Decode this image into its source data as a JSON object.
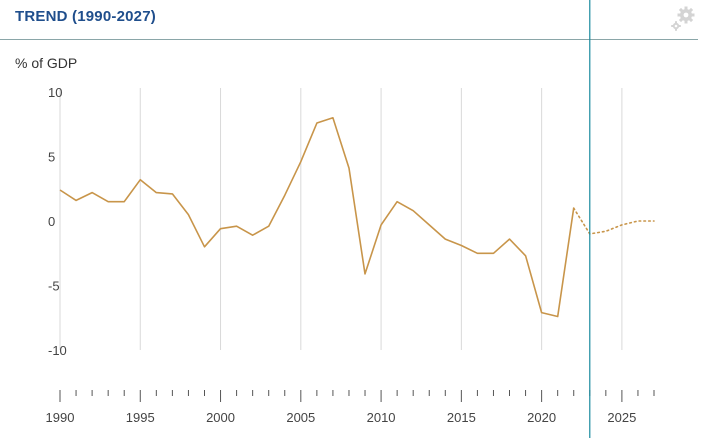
{
  "header": {
    "title": "TREND (1990-2027)",
    "settings_icon": "gear-icon"
  },
  "colors": {
    "accent": "#1f4e8c",
    "series": "#c8954a",
    "cursor": "#1a8a9e",
    "grid": "#d9d9d9"
  },
  "chart_data": {
    "type": "line",
    "ylabel": "% of GDP",
    "xlim": [
      1990,
      2027
    ],
    "ylim": [
      -13,
      10
    ],
    "yticks": [
      10,
      5,
      0,
      -5,
      -10
    ],
    "ytick_labels": [
      "10",
      "5",
      "0",
      "-5",
      "-10"
    ],
    "xticks": [
      1990,
      1995,
      2000,
      2005,
      2010,
      2015,
      2020,
      2025
    ],
    "xtick_labels": [
      "1990",
      "1995",
      "2000",
      "2005",
      "2010",
      "2015",
      "2020",
      "2025"
    ],
    "grid": "vertical",
    "cursor_x": 2023,
    "series": [
      {
        "style": "solid",
        "x": [
          1990,
          1991,
          1992,
          1993,
          1994,
          1995,
          1996,
          1997,
          1998,
          1999,
          2000,
          2001,
          2002,
          2003,
          2004,
          2005,
          2006,
          2007,
          2008,
          2009,
          2010,
          2011,
          2012,
          2013,
          2014,
          2015,
          2016,
          2017,
          2018,
          2019,
          2020,
          2021,
          2022
        ],
        "y": [
          2.4,
          1.6,
          2.2,
          1.5,
          1.5,
          3.2,
          2.2,
          2.1,
          0.5,
          -2.0,
          -0.6,
          -0.4,
          -1.1,
          -0.4,
          2.0,
          4.6,
          7.6,
          8.0,
          4.1,
          -4.1,
          -0.3,
          1.5,
          0.8,
          -0.3,
          -1.4,
          -1.9,
          -2.5,
          -2.5,
          -1.4,
          -2.7,
          -7.1,
          -7.4,
          1.0
        ]
      },
      {
        "style": "dotted",
        "x": [
          2022,
          2023,
          2024,
          2025,
          2026,
          2027
        ],
        "y": [
          1.0,
          -1.0,
          -0.8,
          -0.3,
          0.0,
          0.0
        ]
      }
    ]
  }
}
